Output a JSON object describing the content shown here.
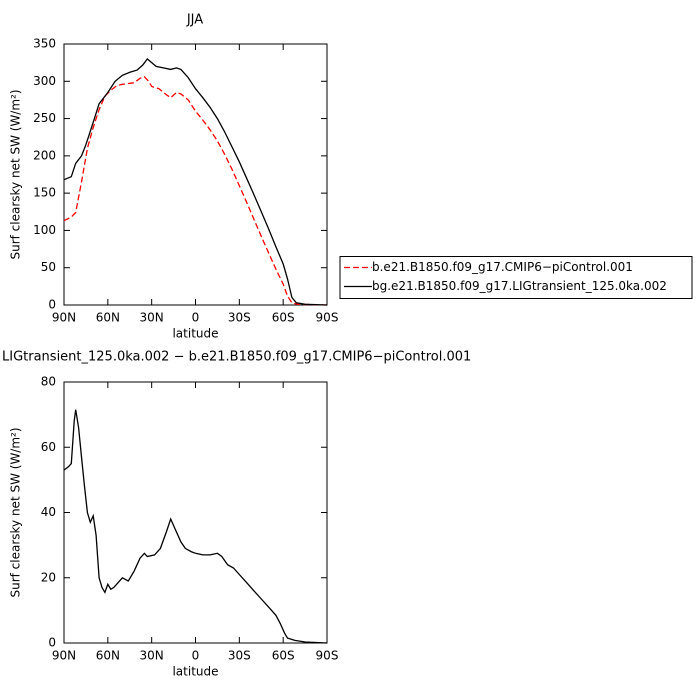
{
  "chart_data": [
    {
      "type": "line",
      "title": "JJA",
      "xlabel": "latitude",
      "ylabel": "Surf clearsky net SW (W/m²)",
      "xlim": [
        90,
        -90
      ],
      "xticks": [
        {
          "value": 90,
          "label": "90N"
        },
        {
          "value": 60,
          "label": "60N"
        },
        {
          "value": 30,
          "label": "30N"
        },
        0,
        {
          "value": -30,
          "label": "30S"
        },
        {
          "value": -60,
          "label": "60S"
        },
        {
          "value": -90,
          "label": "90S"
        }
      ],
      "ylim": [
        0,
        350
      ],
      "yticks": [
        0,
        50,
        100,
        150,
        200,
        250,
        300,
        350
      ],
      "legend": "right",
      "series": [
        {
          "name": "b.e21.B1850.f09_g17.CMIP6−piControl.001",
          "color": "#ff0000",
          "line_style": "dashed",
          "x": [
            90,
            85,
            82,
            78,
            74,
            70,
            66,
            62,
            58,
            54,
            50,
            46,
            42,
            38,
            35,
            32,
            30,
            25,
            20,
            17,
            13,
            10,
            5,
            0,
            -5,
            -10,
            -15,
            -20,
            -25,
            -30,
            -35,
            -40,
            -45,
            -50,
            -55,
            -60,
            -63,
            -66,
            -70,
            -90
          ],
          "values": [
            113,
            118,
            124,
            165,
            210,
            238,
            262,
            280,
            288,
            294,
            296,
            297,
            298,
            304,
            306,
            300,
            293,
            290,
            282,
            278,
            285,
            283,
            275,
            260,
            248,
            235,
            220,
            202,
            182,
            160,
            138,
            115,
            92,
            70,
            48,
            28,
            12,
            3,
            1,
            0
          ]
        },
        {
          "name": "bg.e21.B1850.f09_g17.LIGtransient_125.0ka.002",
          "color": "#000000",
          "line_style": "solid",
          "x": [
            90,
            85,
            82,
            78,
            75,
            70,
            66,
            60,
            55,
            50,
            45,
            40,
            36,
            33,
            30,
            27,
            22,
            17,
            13,
            10,
            5,
            0,
            -5,
            -10,
            -15,
            -20,
            -25,
            -30,
            -35,
            -40,
            -45,
            -50,
            -55,
            -60,
            -63,
            -66,
            -69,
            -75,
            -90
          ],
          "values": [
            168,
            172,
            190,
            200,
            215,
            245,
            270,
            285,
            300,
            308,
            312,
            315,
            322,
            330,
            325,
            320,
            318,
            316,
            318,
            316,
            305,
            290,
            278,
            265,
            250,
            232,
            212,
            192,
            170,
            148,
            125,
            102,
            78,
            55,
            35,
            10,
            3,
            1,
            0
          ]
        }
      ]
    },
    {
      "type": "line",
      "title": "LIGtransient_125.0ka.002 − b.e21.B1850.f09_g17.CMIP6−piControl.001",
      "xlabel": "latitude",
      "ylabel": "Surf clearsky net SW (W/m²)",
      "xlim": [
        90,
        -90
      ],
      "xticks": [
        {
          "value": 90,
          "label": "90N"
        },
        {
          "value": 60,
          "label": "60N"
        },
        {
          "value": 30,
          "label": "30N"
        },
        0,
        {
          "value": -30,
          "label": "30S"
        },
        {
          "value": -60,
          "label": "60S"
        },
        {
          "value": -90,
          "label": "90S"
        }
      ],
      "ylim": [
        0,
        80
      ],
      "yticks": [
        0,
        20,
        40,
        60,
        80
      ],
      "series": [
        {
          "color": "#000000",
          "line_style": "solid",
          "x": [
            90,
            87,
            85,
            83,
            82,
            80,
            78,
            76,
            74,
            72,
            70,
            68,
            66,
            64,
            62,
            60,
            58,
            56,
            54,
            50,
            46,
            42,
            38,
            35,
            33,
            28,
            24,
            20,
            17,
            14,
            10,
            7,
            3,
            0,
            -5,
            -10,
            -15,
            -18,
            -22,
            -26,
            -30,
            -35,
            -40,
            -45,
            -50,
            -55,
            -58,
            -61,
            -63,
            -68,
            -75,
            -90
          ],
          "values": [
            53,
            54,
            55,
            68,
            71.5,
            66,
            57,
            48,
            40,
            37,
            39,
            33,
            20,
            17,
            15.5,
            18,
            16.5,
            17,
            18,
            20,
            19,
            22,
            26,
            27.5,
            26.5,
            27,
            29,
            34,
            38,
            35,
            31,
            29,
            28,
            27.5,
            27,
            27,
            27.5,
            26.5,
            24,
            23,
            21,
            18.5,
            16,
            13.5,
            11,
            8.5,
            6,
            3,
            1.5,
            0.8,
            0.3,
            0
          ]
        }
      ]
    }
  ]
}
